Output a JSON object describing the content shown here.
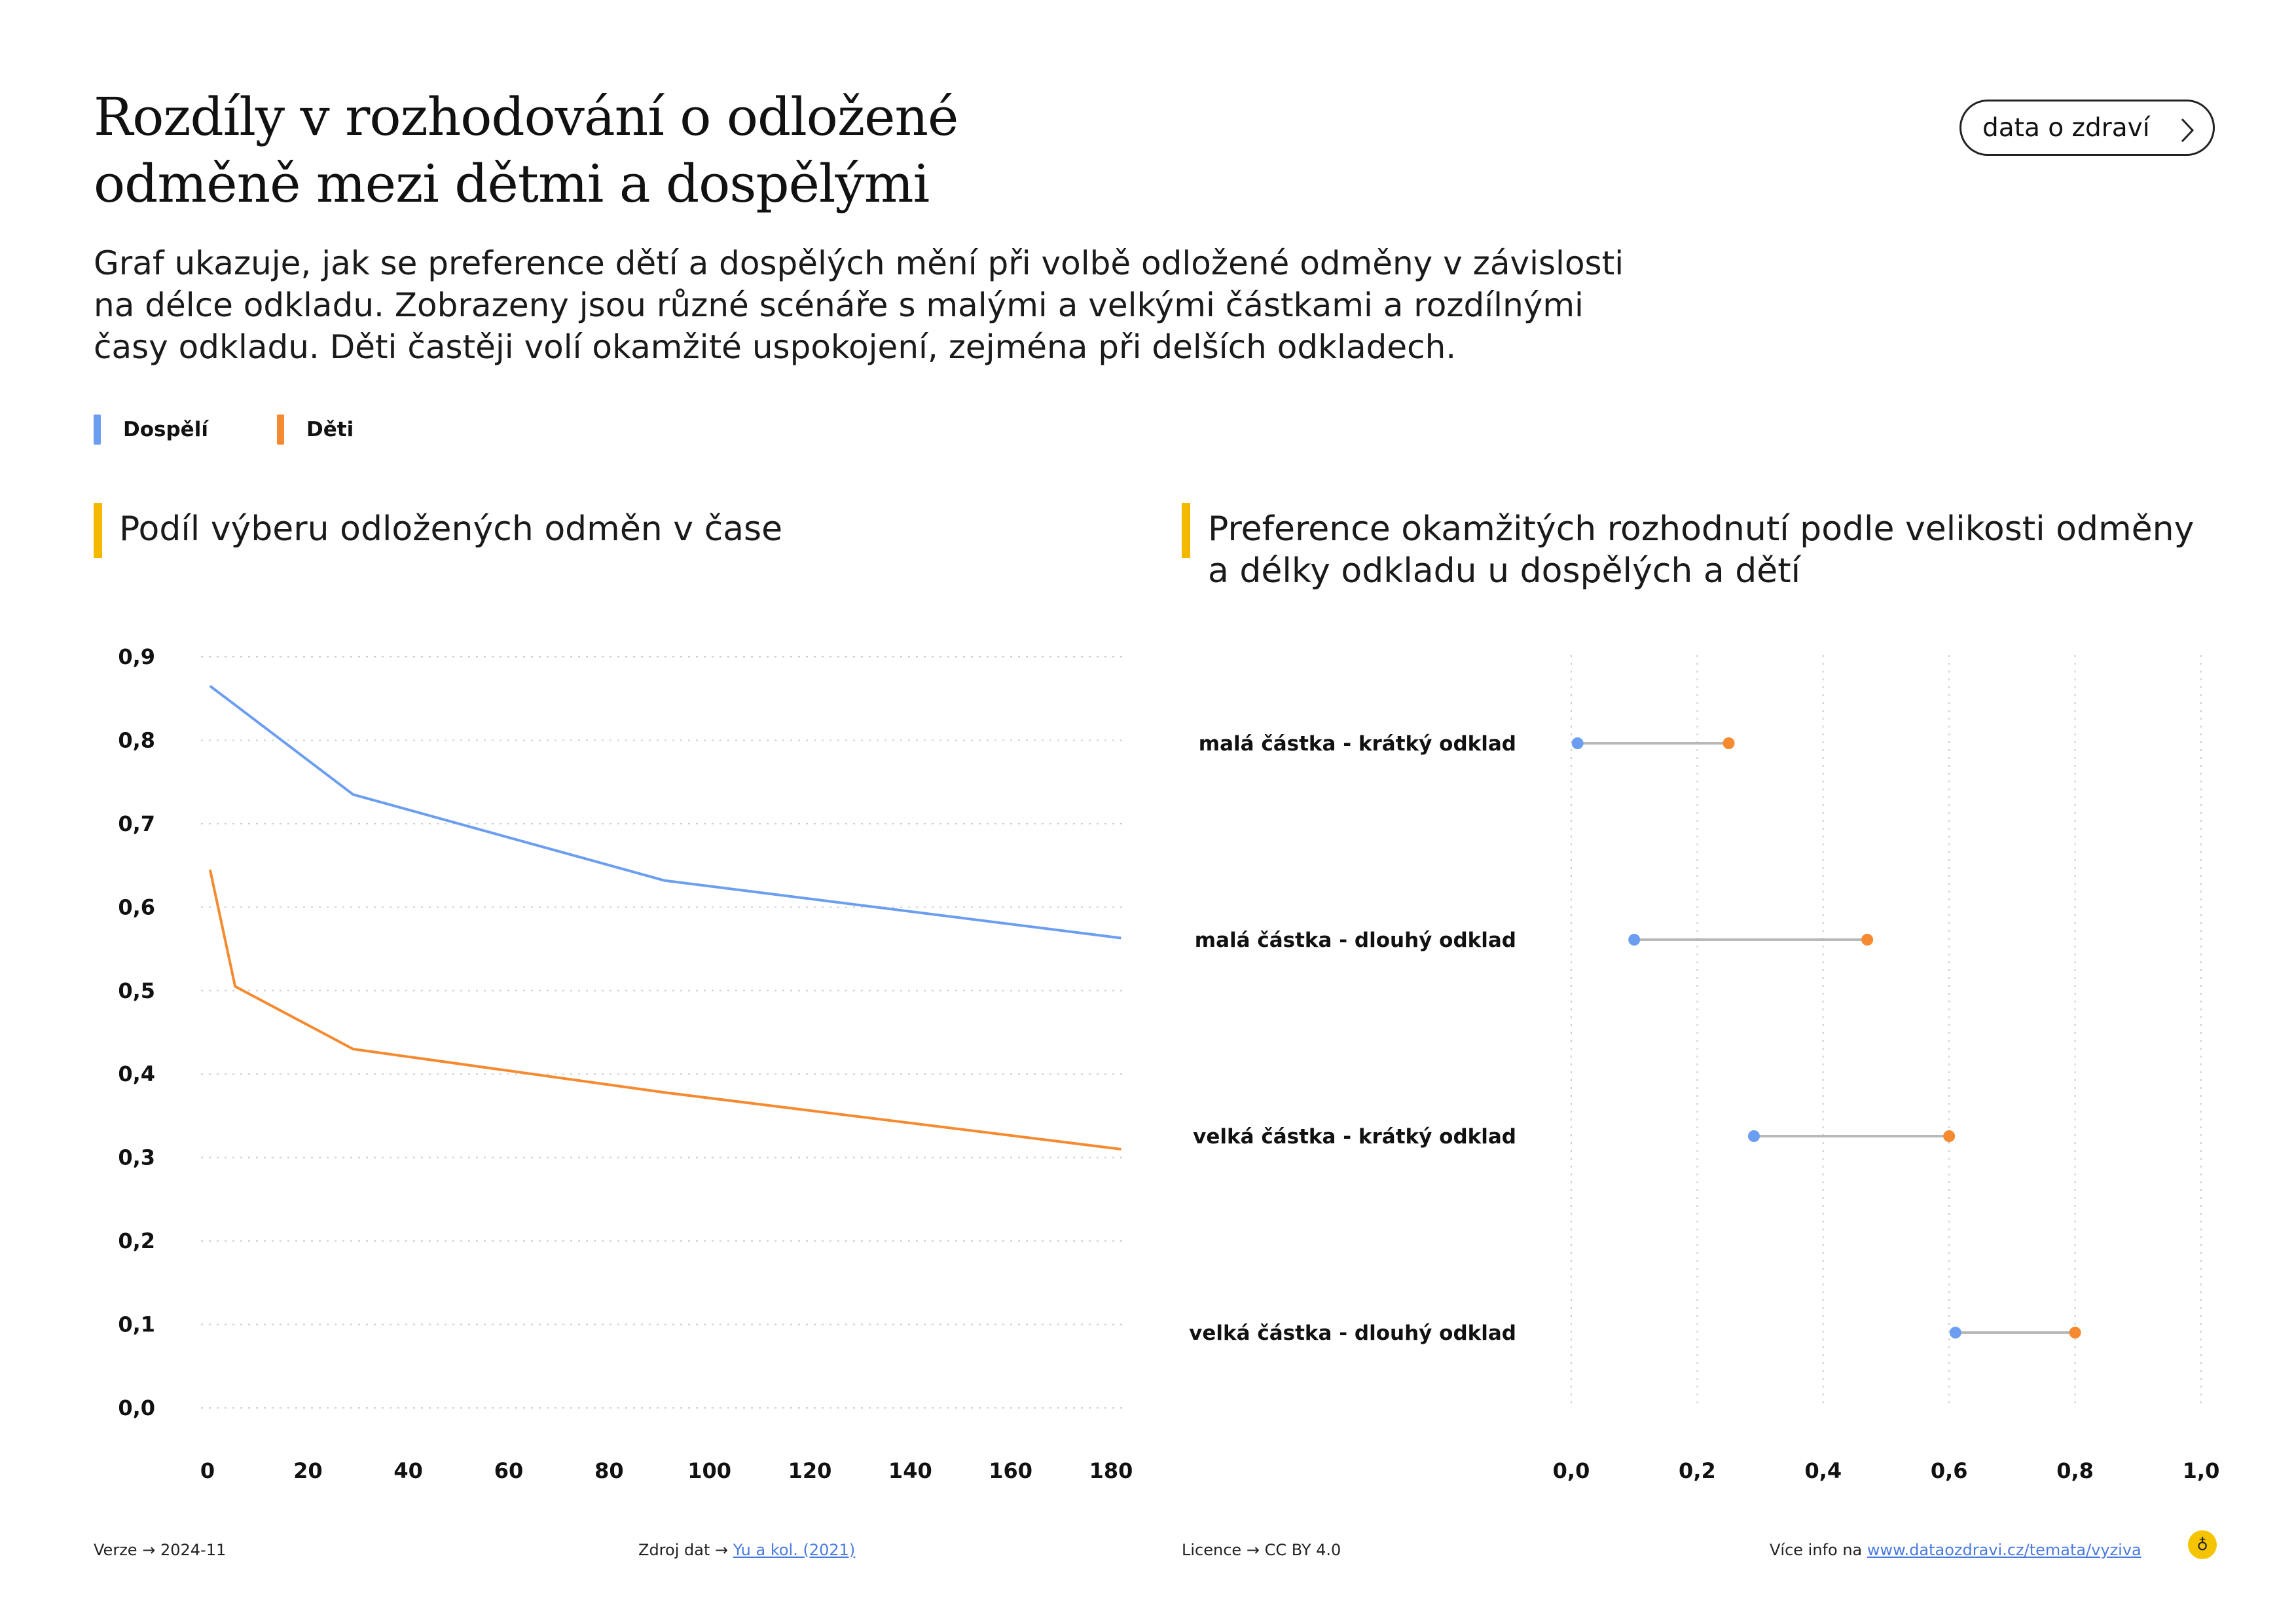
{
  "header": {
    "title_lines": [
      "Rozdíly v rozhodování o odložené",
      "odměně mezi dětmi a dospělými"
    ],
    "subtitle_lines": [
      "Graf ukazuje, jak se preference dětí a dospělých mění při volbě odložené odměny v závislosti",
      "na délce odkladu. Zobrazeny jsou různé scénáře s malými a velkými částkami a rozdílnými",
      "časy odkladu. Děti častěji volí okamžité uspokojení, zejména při delších odkladech."
    ],
    "button_label": "data o zdraví"
  },
  "legend": [
    {
      "label": "Dospělí",
      "color": "#6b9ef0"
    },
    {
      "label": "Děti",
      "color": "#f58a30"
    }
  ],
  "panels": [
    {
      "title_lines": [
        "Podíl výberu odložených odměn v čase"
      ]
    },
    {
      "title_lines": [
        "Preference okamžitých rozhodnutí podle velikosti odměny",
        "a délky odkladu u dospělých a dětí"
      ]
    }
  ],
  "chart_data": [
    {
      "type": "line",
      "x_ticks": [
        0,
        20,
        40,
        60,
        80,
        100,
        120,
        140,
        160,
        180
      ],
      "x_tick_labels": [
        "0",
        "20",
        "40",
        "60",
        "80",
        "100",
        "120",
        "140",
        "160",
        "180"
      ],
      "y_ticks": [
        0,
        0.1,
        0.2,
        0.3,
        0.4,
        0.5,
        0.6,
        0.7,
        0.8,
        0.9
      ],
      "y_tick_labels": [
        "0,0",
        "0,1",
        "0,2",
        "0,3",
        "0,4",
        "0,5",
        "0,6",
        "0,7",
        "0,8",
        "0,9"
      ],
      "xlim": [
        0,
        183
      ],
      "ylim": [
        0,
        0.9
      ],
      "grid": "horizontal dotted",
      "series": [
        {
          "name": "Dospělí",
          "color": "#6b9ef0",
          "points": [
            [
              0.5,
              0.865
            ],
            [
              6,
              0.84
            ],
            [
              29,
              0.735
            ],
            [
              91,
              0.632
            ],
            [
              182,
              0.563
            ]
          ]
        },
        {
          "name": "Děti",
          "color": "#f58a30",
          "points": [
            [
              0.5,
              0.645
            ],
            [
              5.5,
              0.505
            ],
            [
              29,
              0.43
            ],
            [
              91,
              0.378
            ],
            [
              182,
              0.31
            ]
          ]
        }
      ]
    },
    {
      "type": "dumbbell",
      "categories": [
        "malá částka - krátký odklad",
        "malá částka - dlouhý odklad",
        "velká částka - krátký odklad",
        "velká částka - dlouhý odklad"
      ],
      "series": [
        {
          "name": "Dospělí",
          "color": "#6b9ef0",
          "values": [
            0.01,
            0.1,
            0.29,
            0.61
          ]
        },
        {
          "name": "Děti",
          "color": "#f58a30",
          "values": [
            0.25,
            0.47,
            0.6,
            0.8
          ]
        }
      ],
      "x_ticks": [
        0,
        0.2,
        0.4,
        0.6,
        0.8,
        1.0
      ],
      "x_tick_labels": [
        "0,0",
        "0,2",
        "0,4",
        "0,6",
        "0,8",
        "1,0"
      ],
      "xlim": [
        0,
        1.0
      ],
      "grid": "vertical dotted"
    }
  ],
  "footer": {
    "version_label": "Verze",
    "version_value": "2024-11",
    "source_label": "Zdroj dat",
    "source_link": "Yu a kol. (2021)",
    "license_label": "Licence",
    "license_value": "CC BY 4.0",
    "more_info_label": "Více info na",
    "more_info_link": "www.dataozdravi.cz/temata/vyziva"
  }
}
